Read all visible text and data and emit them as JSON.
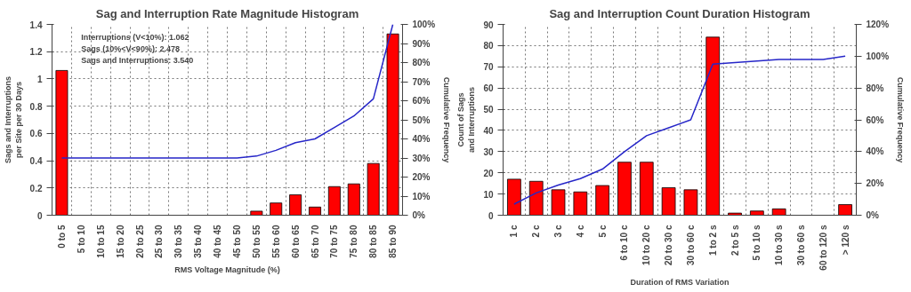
{
  "chart_data": [
    {
      "type": "bar",
      "title": "Sag and Interruption Rate Magnitude Histogram",
      "xlabel": "RMS Voltage Magnitude (%)",
      "ylabel": "Sags and Interruptions per Site per 30 Days",
      "y2label": "Cumulative Frequency",
      "categories": [
        "0 to 5",
        "5 to 10",
        "10 to 15",
        "15 to 20",
        "20 to 25",
        "25 to 30",
        "30 to 35",
        "35 to 40",
        "40 to 45",
        "45 to 50",
        "50 to 55",
        "55 to 60",
        "60 to 65",
        "65 to 70",
        "70 to 75",
        "75 to 80",
        "80 to 85",
        "85 to 90"
      ],
      "series": [
        {
          "color": "#ff0000",
          "values": [
            1.062,
            0,
            0,
            0,
            0,
            0,
            0,
            0,
            0,
            0,
            0.03,
            0.09,
            0.15,
            0.06,
            0.21,
            0.23,
            0.38,
            1.33
          ]
        },
        {
          "type": "line",
          "axis": "y2",
          "color": "#2626c8",
          "values": [
            30,
            30,
            30,
            30,
            30,
            30,
            30,
            30,
            30,
            30,
            31,
            34,
            38,
            40,
            46,
            52,
            61,
            100
          ]
        }
      ],
      "ylim": [
        0,
        1.4
      ],
      "yticks": [
        0,
        0.2,
        0.4,
        0.6,
        0.8,
        1,
        1.2,
        1.4
      ],
      "y2lim": [
        0,
        100
      ],
      "y2ticks": [
        {
          "value": 0,
          "label": "0%"
        },
        {
          "value": 10,
          "label": "10%"
        },
        {
          "value": 20,
          "label": "20%"
        },
        {
          "value": 30,
          "label": "30%"
        },
        {
          "value": 40,
          "label": "40%"
        },
        {
          "value": 50,
          "label": "50%"
        },
        {
          "value": 60,
          "label": "60%"
        },
        {
          "value": 70,
          "label": "70%"
        },
        {
          "value": 80,
          "label": "80%"
        },
        {
          "value": 90,
          "label": "90%"
        },
        {
          "value": 100,
          "label": "100%"
        }
      ],
      "annotations": [
        "Interruptions (V<10%):  1.062",
        "Sags (10%<V<90%):  2.478",
        "Sags and Interruptions:  3.540"
      ],
      "grid": true
    },
    {
      "type": "bar",
      "title": "Sag and Interruption Count Duration Histogram",
      "xlabel": "Duration of RMS Variation",
      "ylabel": "Count of Sags and Interruptions",
      "y2label": "Cumulative Frequency",
      "categories": [
        "1 c",
        "2 c",
        "3 c",
        "4 c",
        "5 c",
        "6 to 10 c",
        "10 to 20 c",
        "20 to 30 c",
        "30 to 60 c",
        "1 to 2 s",
        "2 to 5 s",
        "5 to 10 s",
        "10 to 30 s",
        "30 to 60 s",
        "60 to 120 s",
        "> 120 s"
      ],
      "series": [
        {
          "color": "#ff0000",
          "values": [
            17,
            16,
            12,
            11,
            14,
            25,
            25,
            13,
            12,
            84,
            1,
            2,
            3,
            0,
            0,
            5
          ]
        },
        {
          "type": "line",
          "axis": "y2",
          "color": "#2626c8",
          "values": [
            7,
            14,
            19,
            23,
            29,
            40,
            50,
            55,
            60,
            95,
            96,
            97,
            98,
            98,
            98,
            100
          ]
        }
      ],
      "ylim": [
        0,
        90
      ],
      "yticks": [
        0,
        10,
        20,
        30,
        40,
        50,
        60,
        70,
        80,
        90
      ],
      "y2lim": [
        0,
        120
      ],
      "y2ticks": [
        {
          "value": 0,
          "label": "0%"
        },
        {
          "value": 20,
          "label": "20%"
        },
        {
          "value": 40,
          "label": "40%"
        },
        {
          "value": 60,
          "label": "60%"
        },
        {
          "value": 80,
          "label": "80%"
        },
        {
          "value": 100,
          "label": "100%"
        },
        {
          "value": 120,
          "label": "120%"
        }
      ],
      "grid": true
    }
  ]
}
